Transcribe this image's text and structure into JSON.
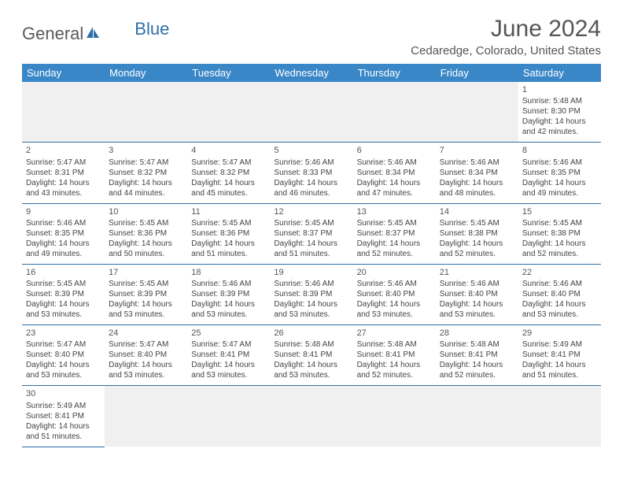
{
  "logo": {
    "part1": "General",
    "part2": "Blue"
  },
  "title": "June 2024",
  "location": "Cedaredge, Colorado, United States",
  "colors": {
    "header_bg": "#3a87c8",
    "header_text": "#ffffff",
    "border": "#2f6fa8",
    "title_text": "#555555",
    "cell_text": "#444444",
    "empty_bg": "#f0f0f0"
  },
  "weekdays": [
    "Sunday",
    "Monday",
    "Tuesday",
    "Wednesday",
    "Thursday",
    "Friday",
    "Saturday"
  ],
  "weeks": [
    [
      null,
      null,
      null,
      null,
      null,
      null,
      {
        "n": "1",
        "sr": "5:48 AM",
        "ss": "8:30 PM",
        "dh": "14",
        "dm": "42"
      }
    ],
    [
      {
        "n": "2",
        "sr": "5:47 AM",
        "ss": "8:31 PM",
        "dh": "14",
        "dm": "43"
      },
      {
        "n": "3",
        "sr": "5:47 AM",
        "ss": "8:32 PM",
        "dh": "14",
        "dm": "44"
      },
      {
        "n": "4",
        "sr": "5:47 AM",
        "ss": "8:32 PM",
        "dh": "14",
        "dm": "45"
      },
      {
        "n": "5",
        "sr": "5:46 AM",
        "ss": "8:33 PM",
        "dh": "14",
        "dm": "46"
      },
      {
        "n": "6",
        "sr": "5:46 AM",
        "ss": "8:34 PM",
        "dh": "14",
        "dm": "47"
      },
      {
        "n": "7",
        "sr": "5:46 AM",
        "ss": "8:34 PM",
        "dh": "14",
        "dm": "48"
      },
      {
        "n": "8",
        "sr": "5:46 AM",
        "ss": "8:35 PM",
        "dh": "14",
        "dm": "49"
      }
    ],
    [
      {
        "n": "9",
        "sr": "5:46 AM",
        "ss": "8:35 PM",
        "dh": "14",
        "dm": "49"
      },
      {
        "n": "10",
        "sr": "5:45 AM",
        "ss": "8:36 PM",
        "dh": "14",
        "dm": "50"
      },
      {
        "n": "11",
        "sr": "5:45 AM",
        "ss": "8:36 PM",
        "dh": "14",
        "dm": "51"
      },
      {
        "n": "12",
        "sr": "5:45 AM",
        "ss": "8:37 PM",
        "dh": "14",
        "dm": "51"
      },
      {
        "n": "13",
        "sr": "5:45 AM",
        "ss": "8:37 PM",
        "dh": "14",
        "dm": "52"
      },
      {
        "n": "14",
        "sr": "5:45 AM",
        "ss": "8:38 PM",
        "dh": "14",
        "dm": "52"
      },
      {
        "n": "15",
        "sr": "5:45 AM",
        "ss": "8:38 PM",
        "dh": "14",
        "dm": "52"
      }
    ],
    [
      {
        "n": "16",
        "sr": "5:45 AM",
        "ss": "8:39 PM",
        "dh": "14",
        "dm": "53"
      },
      {
        "n": "17",
        "sr": "5:45 AM",
        "ss": "8:39 PM",
        "dh": "14",
        "dm": "53"
      },
      {
        "n": "18",
        "sr": "5:46 AM",
        "ss": "8:39 PM",
        "dh": "14",
        "dm": "53"
      },
      {
        "n": "19",
        "sr": "5:46 AM",
        "ss": "8:39 PM",
        "dh": "14",
        "dm": "53"
      },
      {
        "n": "20",
        "sr": "5:46 AM",
        "ss": "8:40 PM",
        "dh": "14",
        "dm": "53"
      },
      {
        "n": "21",
        "sr": "5:46 AM",
        "ss": "8:40 PM",
        "dh": "14",
        "dm": "53"
      },
      {
        "n": "22",
        "sr": "5:46 AM",
        "ss": "8:40 PM",
        "dh": "14",
        "dm": "53"
      }
    ],
    [
      {
        "n": "23",
        "sr": "5:47 AM",
        "ss": "8:40 PM",
        "dh": "14",
        "dm": "53"
      },
      {
        "n": "24",
        "sr": "5:47 AM",
        "ss": "8:40 PM",
        "dh": "14",
        "dm": "53"
      },
      {
        "n": "25",
        "sr": "5:47 AM",
        "ss": "8:41 PM",
        "dh": "14",
        "dm": "53"
      },
      {
        "n": "26",
        "sr": "5:48 AM",
        "ss": "8:41 PM",
        "dh": "14",
        "dm": "53"
      },
      {
        "n": "27",
        "sr": "5:48 AM",
        "ss": "8:41 PM",
        "dh": "14",
        "dm": "52"
      },
      {
        "n": "28",
        "sr": "5:48 AM",
        "ss": "8:41 PM",
        "dh": "14",
        "dm": "52"
      },
      {
        "n": "29",
        "sr": "5:49 AM",
        "ss": "8:41 PM",
        "dh": "14",
        "dm": "51"
      }
    ],
    [
      {
        "n": "30",
        "sr": "5:49 AM",
        "ss": "8:41 PM",
        "dh": "14",
        "dm": "51"
      },
      null,
      null,
      null,
      null,
      null,
      null
    ]
  ],
  "labels": {
    "sunrise": "Sunrise:",
    "sunset": "Sunset:",
    "daylight": "Daylight:",
    "hours_and": "hours and",
    "minutes": "minutes."
  }
}
